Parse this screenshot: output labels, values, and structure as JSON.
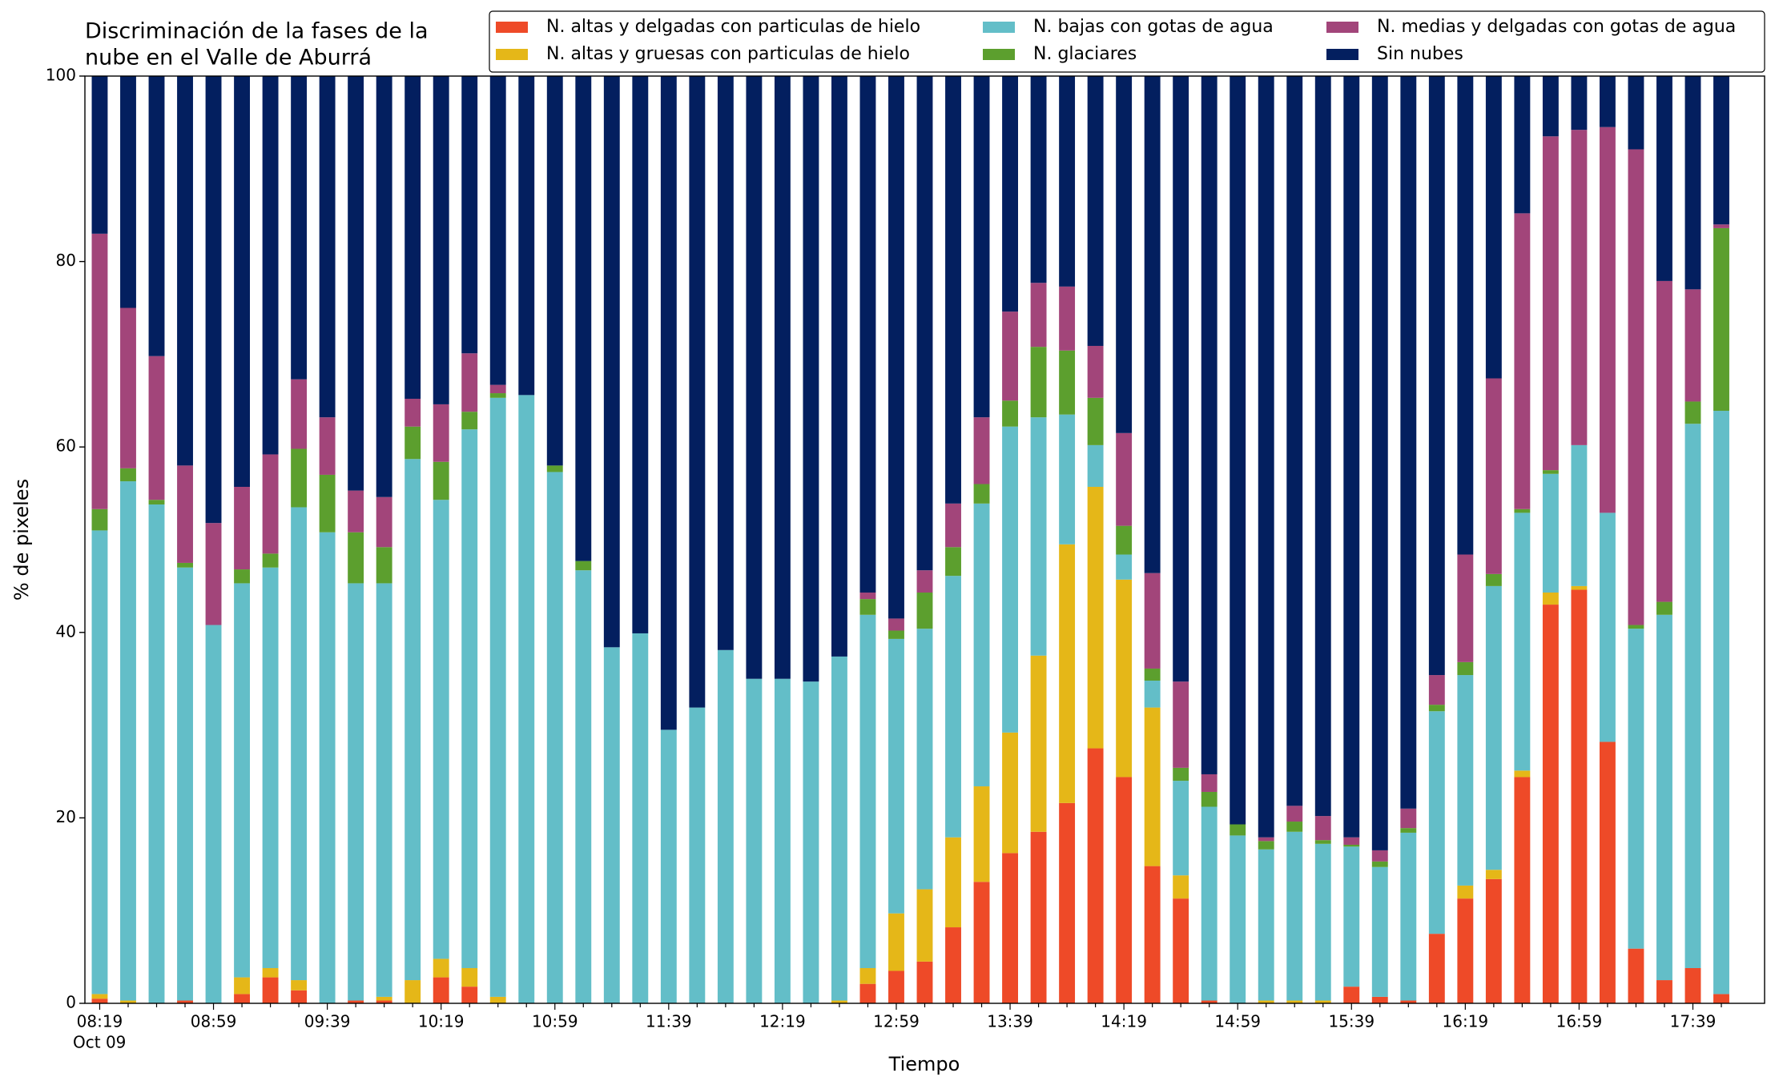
{
  "chart_data": {
    "type": "stacked_bar",
    "title": [
      "Discriminación de la fases de la",
      "nube en el Valle de Aburrá"
    ],
    "x_label": "Tiempo",
    "y_label": "% de pixeles",
    "x_sublabel": "Oct 09",
    "categories": [
      "08:19",
      null,
      null,
      null,
      "08:59",
      null,
      null,
      null,
      "09:39",
      null,
      null,
      null,
      "10:19",
      null,
      null,
      null,
      "10:59",
      null,
      null,
      null,
      "11:39",
      null,
      null,
      null,
      "12:19",
      null,
      null,
      null,
      "12:59",
      null,
      null,
      null,
      "13:39",
      null,
      null,
      null,
      "14:19",
      null,
      null,
      null,
      "14:59",
      null,
      null,
      null,
      "15:39",
      null,
      null,
      null,
      "16:19",
      null,
      null,
      null,
      "16:59",
      null,
      null,
      null,
      "17:39",
      null
    ],
    "ylim": [
      0,
      100
    ],
    "yticks": [
      0,
      20,
      40,
      60,
      80,
      100
    ],
    "grid": false,
    "legend": "top",
    "series": [
      {
        "name": "N. altas y delgadas con particulas de hielo",
        "color": "#ee4a28",
        "values": [
          0.5,
          0,
          0,
          0.3,
          0,
          1.0,
          2.8,
          1.4,
          0,
          0.3,
          0.3,
          0,
          2.8,
          1.8,
          0,
          0,
          0,
          0,
          0,
          0,
          0,
          0,
          0,
          0,
          0,
          0,
          0,
          2.1,
          3.5,
          4.5,
          8.2,
          13.1,
          16.2,
          18.5,
          21.6,
          27.5,
          24.4,
          14.8,
          11.3,
          0.3,
          0,
          0,
          0,
          0,
          1.8,
          0.7,
          0.3,
          7.5,
          11.3,
          13.4,
          24.4,
          43.0,
          44.6,
          28.2,
          5.9,
          2.5,
          3.8,
          1.0
        ]
      },
      {
        "name": "N. altas y gruesas con particulas de hielo",
        "color": "#e5b718",
        "values": [
          0.5,
          0.3,
          0,
          0,
          0,
          1.8,
          1.0,
          1.1,
          0,
          0,
          0.4,
          2.5,
          2.0,
          2.0,
          0.7,
          0,
          0,
          0,
          0,
          0,
          0,
          0,
          0,
          0,
          0,
          0,
          0.3,
          1.7,
          6.2,
          7.8,
          9.7,
          10.3,
          13.0,
          19.0,
          27.9,
          28.2,
          21.3,
          17.1,
          2.5,
          0,
          0,
          0.3,
          0.3,
          0.3,
          0,
          0,
          0,
          0,
          1.4,
          1.0,
          0.7,
          1.3,
          0.4,
          0,
          0,
          0,
          0,
          0
        ]
      },
      {
        "name": "N. bajas con gotas de agua",
        "color": "#63bec8",
        "values": [
          50.0,
          56.0,
          53.8,
          46.7,
          40.8,
          42.5,
          43.2,
          51.0,
          50.8,
          45.0,
          44.6,
          56.2,
          49.5,
          58.1,
          64.6,
          65.6,
          57.3,
          46.7,
          38.4,
          39.9,
          29.5,
          31.9,
          38.1,
          35.0,
          35.0,
          34.7,
          37.1,
          38.1,
          29.6,
          28.1,
          28.2,
          30.5,
          33.0,
          25.7,
          14.0,
          4.5,
          2.7,
          2.9,
          10.2,
          20.9,
          18.1,
          16.3,
          18.2,
          16.9,
          15.1,
          14.0,
          18.1,
          24.0,
          22.7,
          30.6,
          27.8,
          12.8,
          15.2,
          24.7,
          34.5,
          39.4,
          58.7,
          62.9
        ]
      },
      {
        "name": "N. glaciares",
        "color": "#5c9f2e",
        "values": [
          2.3,
          1.4,
          0.5,
          0.5,
          0,
          1.5,
          1.5,
          6.3,
          6.2,
          5.5,
          3.9,
          3.5,
          4.1,
          1.9,
          0.5,
          0,
          0.7,
          1.0,
          0,
          0,
          0,
          0,
          0,
          0,
          0,
          0,
          0,
          1.7,
          0.9,
          3.9,
          3.1,
          2.1,
          2.8,
          7.6,
          6.9,
          5.1,
          3.1,
          1.3,
          1.4,
          1.6,
          1.2,
          0.9,
          1.1,
          0.4,
          0.2,
          0.6,
          0.5,
          0.7,
          1.4,
          1.3,
          0.4,
          0.4,
          0,
          0,
          0.4,
          1.4,
          2.4,
          19.7
        ]
      },
      {
        "name": "N. medias y delgadas con gotas de agua",
        "color": "#a2457a",
        "values": [
          29.7,
          17.3,
          15.5,
          10.5,
          11.0,
          8.9,
          10.7,
          7.5,
          6.2,
          4.5,
          5.4,
          3.0,
          6.2,
          6.3,
          0.9,
          0,
          0,
          0,
          0,
          0,
          0,
          0,
          0,
          0,
          0,
          0,
          0,
          0.7,
          1.3,
          2.4,
          4.7,
          7.2,
          9.6,
          6.9,
          6.9,
          5.6,
          10.0,
          10.3,
          9.3,
          1.9,
          0,
          0.4,
          1.7,
          2.6,
          0.8,
          1.2,
          2.1,
          3.2,
          11.6,
          21.1,
          31.9,
          36.0,
          34.0,
          41.6,
          51.3,
          34.6,
          12.1,
          0.4
        ]
      },
      {
        "name": "Sin nubes",
        "color": "#031f5f",
        "values": [
          17.0,
          25.0,
          30.2,
          42.0,
          48.2,
          44.3,
          40.8,
          32.7,
          36.8,
          44.7,
          45.4,
          34.8,
          35.4,
          29.9,
          33.3,
          34.4,
          42.0,
          52.3,
          61.6,
          60.1,
          70.5,
          68.1,
          61.9,
          65.0,
          65.0,
          65.3,
          62.6,
          55.7,
          58.5,
          53.3,
          46.1,
          36.8,
          25.4,
          22.3,
          22.7,
          29.1,
          38.5,
          53.6,
          65.3,
          75.3,
          80.7,
          82.1,
          78.7,
          79.8,
          82.1,
          83.5,
          79.0,
          64.6,
          51.6,
          32.6,
          14.8,
          6.5,
          5.8,
          5.5,
          7.9,
          22.1,
          23.0,
          16.0
        ]
      }
    ]
  }
}
